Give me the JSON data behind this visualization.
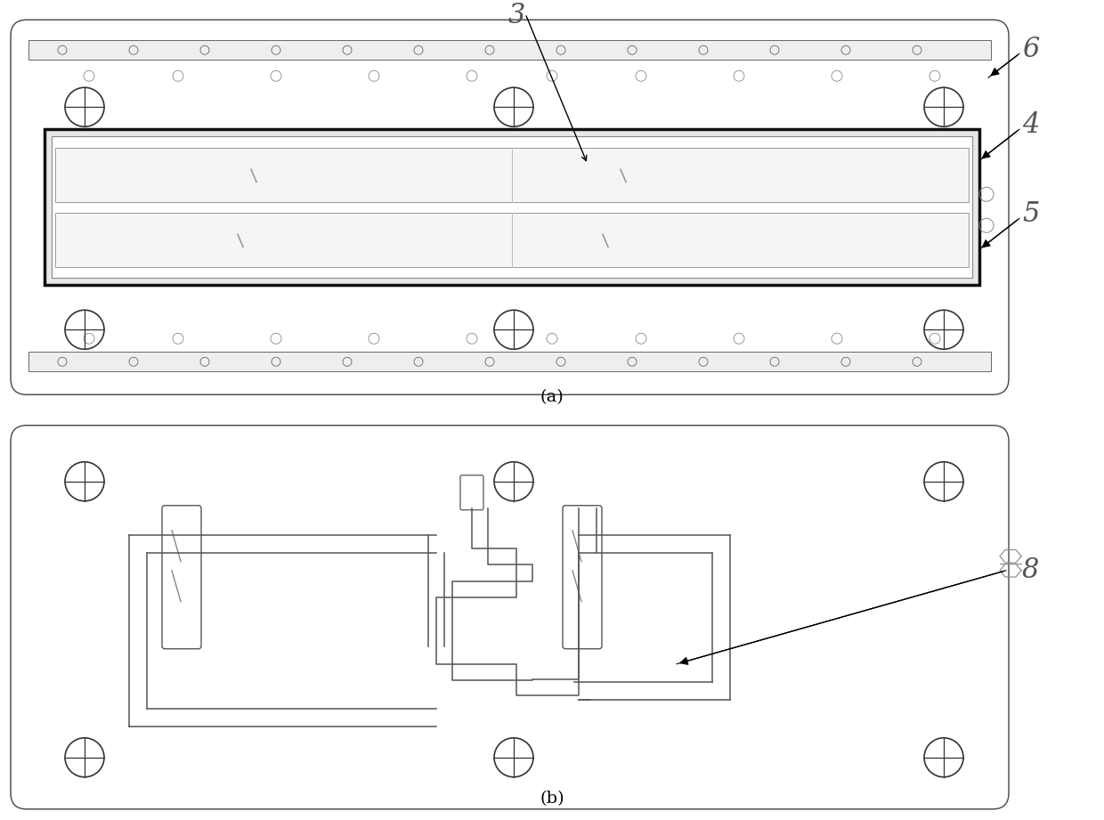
{
  "bg": "#ffffff",
  "lc": "#000000",
  "gray": "#888888",
  "lgray": "#aaaaaa",
  "panel_a_label": "(a)",
  "panel_b_label": "(b)",
  "label_3": "3",
  "label_4": "4",
  "label_5": "5",
  "label_6": "6",
  "label_8": "8"
}
